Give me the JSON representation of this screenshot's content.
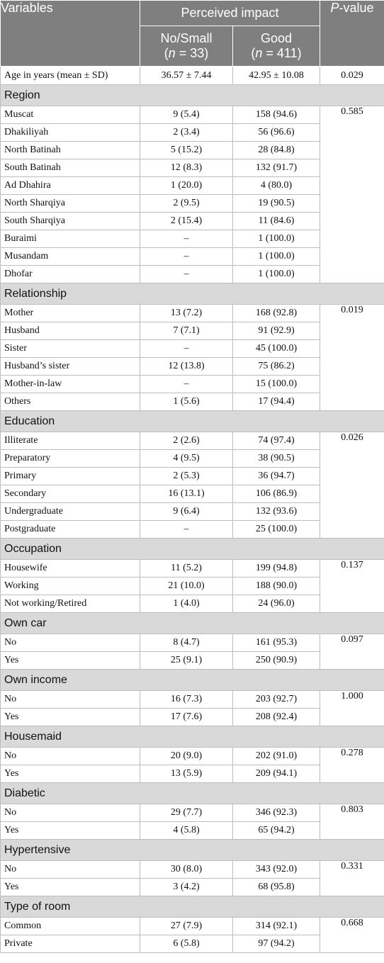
{
  "header": {
    "variables": "Variables",
    "perceived_impact": "Perceived impact",
    "p_italic": "P",
    "p_rest": "-value",
    "col_small_label": "No/Small",
    "col_small_n_pre": "(",
    "col_small_n_italic": "n",
    "col_small_n_post": " = 33)",
    "col_good_label": "Good",
    "col_good_n_pre": "(",
    "col_good_n_italic": "n",
    "col_good_n_post": " = 411)"
  },
  "age": {
    "label": "Age in years (mean ± SD)",
    "small": "36.57 ± 7.44",
    "good": "42.95 ± 10.08",
    "p": "0.029"
  },
  "sections": [
    {
      "title": "Region",
      "p": "0.585",
      "rows": [
        {
          "label": "Muscat",
          "small": "9 (5.4)",
          "good": "158 (94.6)"
        },
        {
          "label": "Dhakiliyah",
          "small": "2 (3.4)",
          "good": "56 (96.6)"
        },
        {
          "label": "North Batinah",
          "small": "5 (15.2)",
          "good": "28 (84.8)"
        },
        {
          "label": "South Batinah",
          "small": "12 (8.3)",
          "good": "132 (91.7)"
        },
        {
          "label": "Ad Dhahira",
          "small": "1 (20.0)",
          "good": "4 (80.0)"
        },
        {
          "label": "North Sharqiya",
          "small": "2 (9.5)",
          "good": "19 (90.5)"
        },
        {
          "label": "South Sharqiya",
          "small": "2 (15.4)",
          "good": "11 (84.6)"
        },
        {
          "label": "Buraimi",
          "small": "–",
          "good": "1 (100.0)"
        },
        {
          "label": "Musandam",
          "small": "–",
          "good": "1 (100.0)"
        },
        {
          "label": "Dhofar",
          "small": "–",
          "good": "1 (100.0)"
        }
      ]
    },
    {
      "title": "Relationship",
      "p": "0.019",
      "rows": [
        {
          "label": "Mother",
          "small": "13 (7.2)",
          "good": "168 (92.8)"
        },
        {
          "label": "Husband",
          "small": "7 (7.1)",
          "good": "91 (92.9)"
        },
        {
          "label": "Sister",
          "small": "–",
          "good": "45 (100.0)"
        },
        {
          "label": "Husband’s sister",
          "small": "12 (13.8)",
          "good": "75 (86.2)"
        },
        {
          "label": "Mother-in-law",
          "small": "–",
          "good": "15 (100.0)"
        },
        {
          "label": "Others",
          "small": "1 (5.6)",
          "good": "17 (94.4)"
        }
      ]
    },
    {
      "title": "Education",
      "p": "0.026",
      "rows": [
        {
          "label": "Illiterate",
          "small": "2 (2.6)",
          "good": "74 (97.4)"
        },
        {
          "label": "Preparatory",
          "small": "4 (9.5)",
          "good": "38 (90.5)"
        },
        {
          "label": "Primary",
          "small": "2 (5.3)",
          "good": "36 (94.7)"
        },
        {
          "label": "Secondary",
          "small": "16 (13.1)",
          "good": "106 (86.9)"
        },
        {
          "label": "Undergraduate",
          "small": "9 (6.4)",
          "good": "132 (93.6)"
        },
        {
          "label": "Postgraduate",
          "small": "–",
          "good": "25 (100.0)"
        }
      ]
    },
    {
      "title": "Occupation",
      "p": "0.137",
      "rows": [
        {
          "label": "Housewife",
          "small": "11 (5.2)",
          "good": "199 (94.8)"
        },
        {
          "label": "Working",
          "small": "21 (10.0)",
          "good": "188 (90.0)"
        },
        {
          "label": "Not working/Retired",
          "small": "1 (4.0)",
          "good": "24 (96.0)"
        }
      ]
    },
    {
      "title": "Own car",
      "p": "0.097",
      "rows": [
        {
          "label": "No",
          "small": "8 (4.7)",
          "good": "161 (95.3)"
        },
        {
          "label": "Yes",
          "small": "25 (9.1)",
          "good": "250 (90.9)"
        }
      ]
    },
    {
      "title": "Own income",
      "p": "1.000",
      "rows": [
        {
          "label": "No",
          "small": "16 (7.3)",
          "good": "203 (92.7)"
        },
        {
          "label": "Yes",
          "small": "17 (7.6)",
          "good": "208 (92.4)"
        }
      ]
    },
    {
      "title": "Housemaid",
      "p": "0.278",
      "rows": [
        {
          "label": "No",
          "small": "20 (9.0)",
          "good": "202 (91.0)"
        },
        {
          "label": "Yes",
          "small": "13 (5.9)",
          "good": "209 (94.1)"
        }
      ]
    },
    {
      "title": "Diabetic",
      "p": "0.803",
      "rows": [
        {
          "label": "No",
          "small": "29 (7.7)",
          "good": "346 (92.3)"
        },
        {
          "label": "Yes",
          "small": "4 (5.8)",
          "good": "65 (94.2)"
        }
      ]
    },
    {
      "title": "Hypertensive",
      "p": "0.331",
      "rows": [
        {
          "label": "No",
          "small": "30 (8.0)",
          "good": "343 (92.0)"
        },
        {
          "label": "Yes",
          "small": "3 (4.2)",
          "good": "68 (95.8)"
        }
      ]
    },
    {
      "title": "Type of room",
      "p": "0.668",
      "rows": [
        {
          "label": "Common",
          "small": "27 (7.9)",
          "good": "314 (92.1)"
        },
        {
          "label": "Private",
          "small": "6 (5.8)",
          "good": "97 (94.2)"
        }
      ]
    }
  ]
}
